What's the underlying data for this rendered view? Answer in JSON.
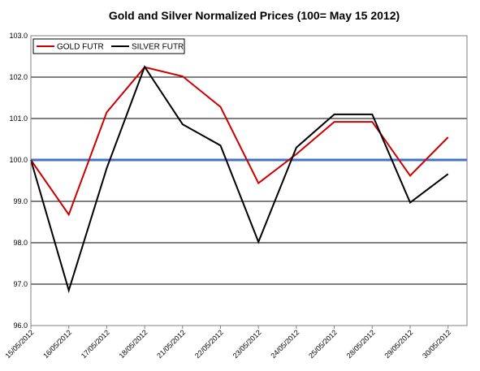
{
  "chart_data": {
    "type": "line",
    "title": "Gold and Silver Normalized Prices  (100= May 15 2012)",
    "xlabel": "",
    "ylabel": "",
    "ylim": [
      96.0,
      103.0
    ],
    "yticks": [
      "96.0",
      "97.0",
      "98.0",
      "99.0",
      "100.0",
      "101.0",
      "102.0",
      "103.0"
    ],
    "categories": [
      "15/05/2012",
      "16/05/2012",
      "17/05/2012",
      "18/05/2012",
      "21/05/2012",
      "22/05/2012",
      "23/05/2012",
      "24/05/2012",
      "25/05/2012",
      "28/05/2012",
      "29/05/2012",
      "30/05/2012"
    ],
    "series": [
      {
        "name": "GOLD FUTR",
        "color": "#cc0000",
        "values": [
          100.0,
          98.68,
          101.15,
          102.24,
          102.02,
          101.28,
          99.44,
          100.14,
          100.92,
          100.92,
          99.62,
          100.55
        ]
      },
      {
        "name": "SILVER FUTR",
        "color": "#000000",
        "values": [
          100.0,
          96.85,
          99.8,
          102.25,
          100.86,
          100.35,
          98.02,
          100.3,
          101.1,
          101.1,
          98.97,
          99.66
        ]
      }
    ],
    "reference_line": {
      "value": 100.0,
      "color": "#4472c4"
    },
    "grid": true,
    "legend_position": "top-left"
  }
}
